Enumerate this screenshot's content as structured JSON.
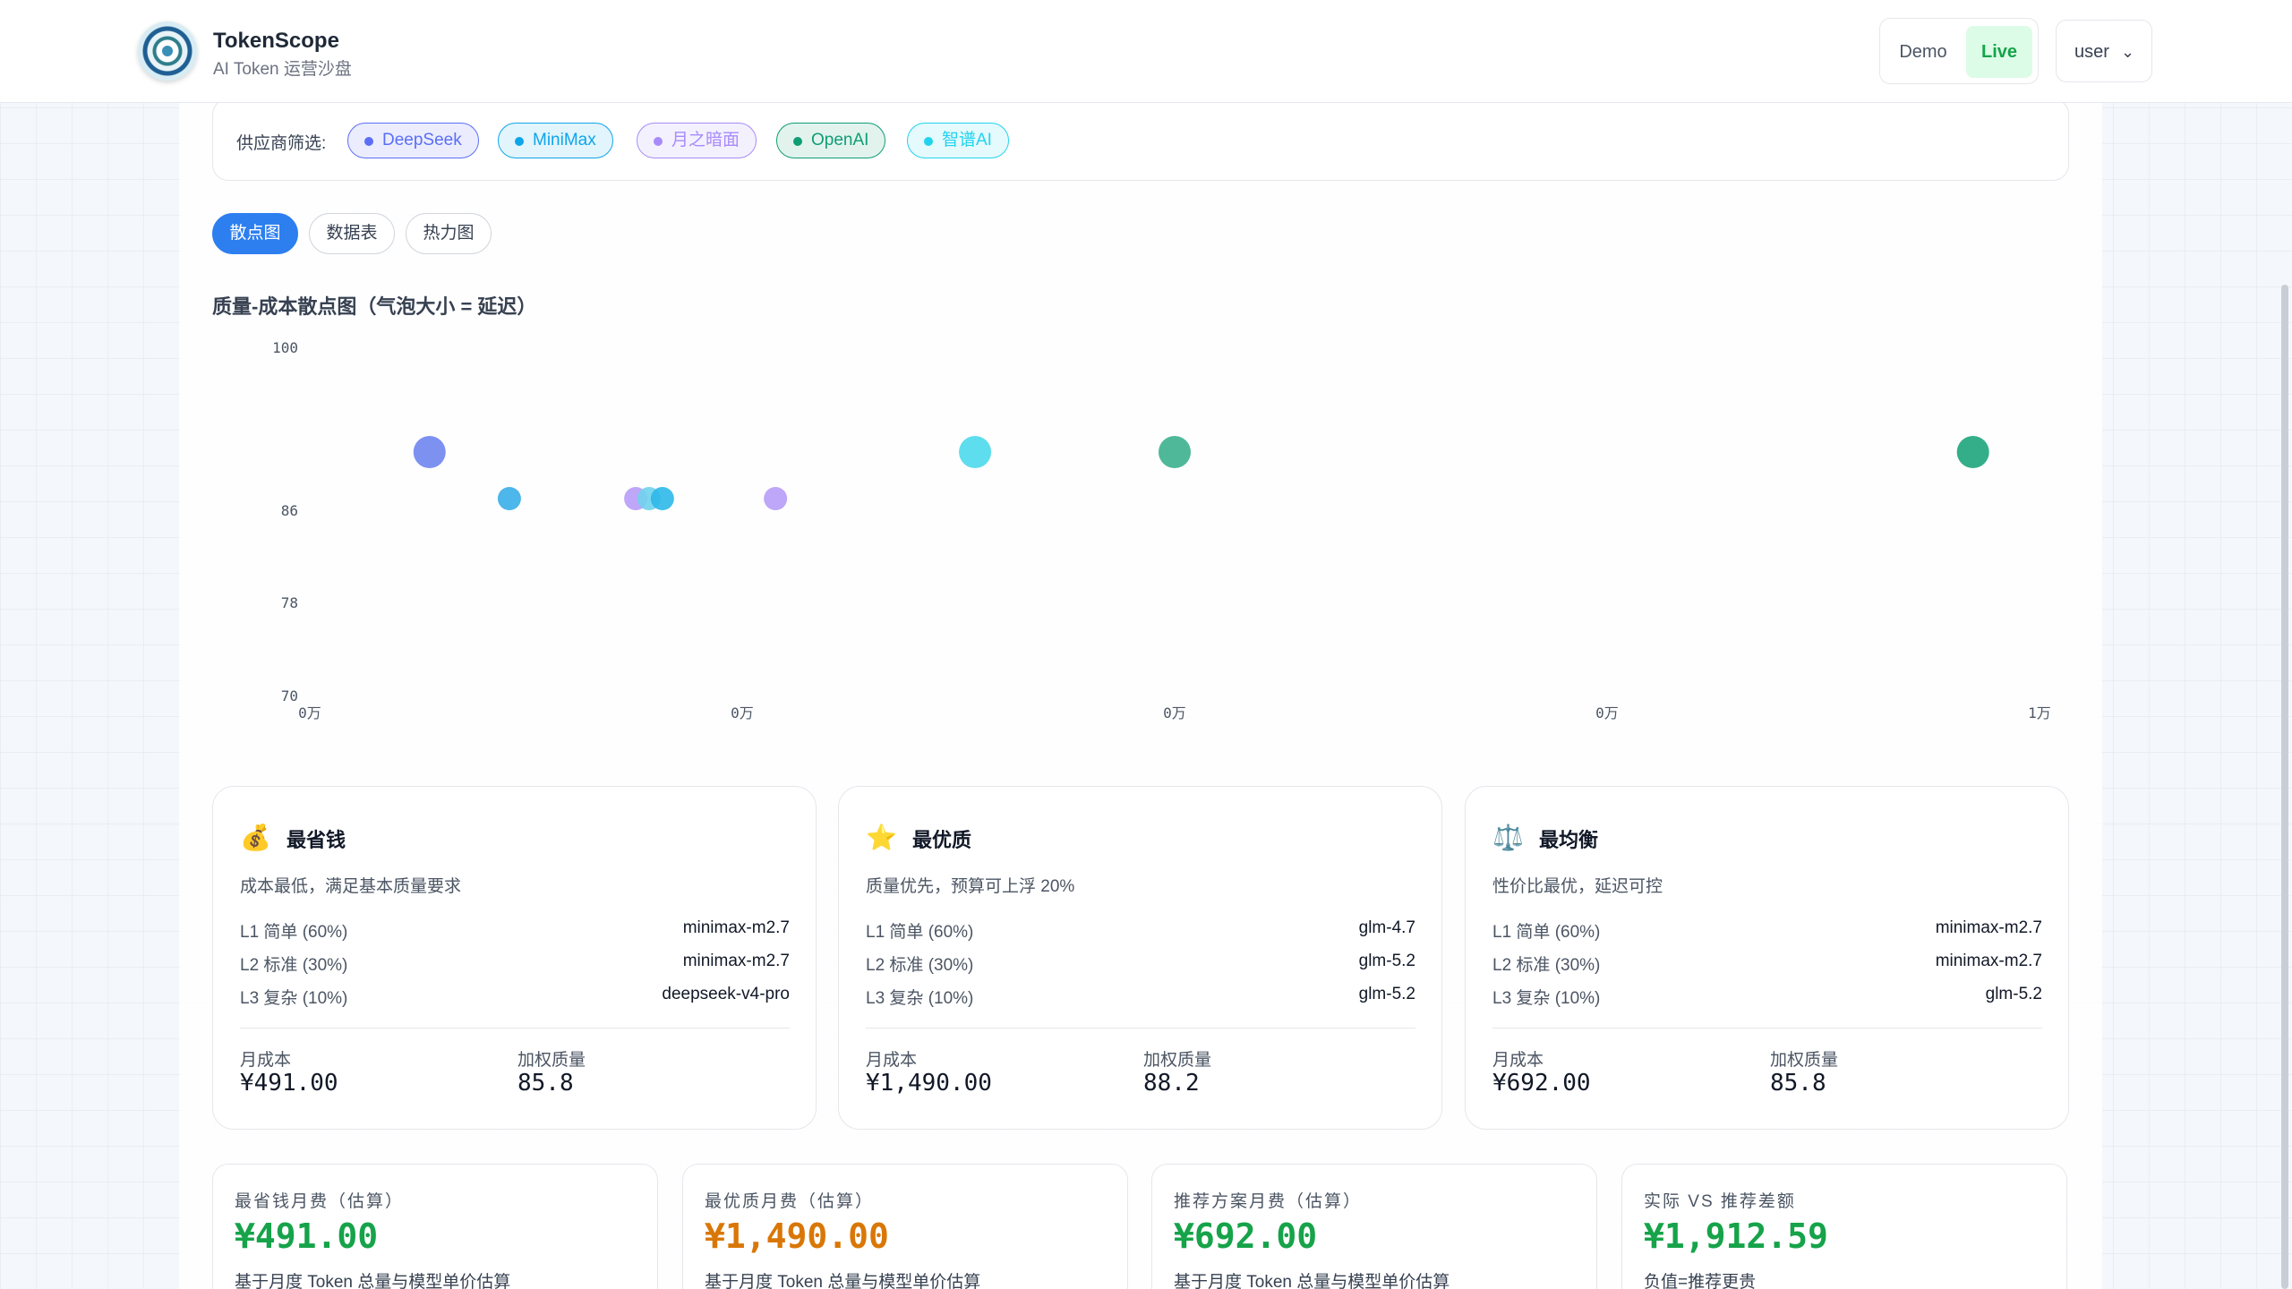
{
  "header": {
    "app_title": "TokenScope",
    "app_subtitle": "AI Token 运营沙盘",
    "mode_demo": "Demo",
    "mode_live": "Live",
    "user_label": "user"
  },
  "filter": {
    "label": "供应商筛选:",
    "chips": [
      {
        "name": "DeepSeek",
        "color": "#5b6ef5"
      },
      {
        "name": "MiniMax",
        "color": "#0ea5e9"
      },
      {
        "name": "月之暗面",
        "color": "#a78bfa"
      },
      {
        "name": "OpenAI",
        "color": "#0f9d74"
      },
      {
        "name": "智谱AI",
        "color": "#22d3ee"
      }
    ]
  },
  "view_tabs": [
    "散点图",
    "数据表",
    "热力图"
  ],
  "chart_title": "质量-成本散点图（气泡大小 = 延迟）",
  "chart_data": {
    "type": "scatter",
    "title": "质量-成本散点图（气泡大小 = 延迟）",
    "y_ticks": [
      "100",
      "86",
      "78",
      "70"
    ],
    "x_ticks": [
      "0万",
      "0万",
      "0万",
      "0万",
      "1万"
    ],
    "points": [
      {
        "x": 0.09,
        "y": 91,
        "color": "#6f85f0"
      },
      {
        "x": 0.5,
        "y": 91,
        "color": "#4dd9ec"
      },
      {
        "x": 0.65,
        "y": 91,
        "color": "#3cb08d"
      },
      {
        "x": 1.25,
        "y": 91,
        "color": "#1ea57c"
      },
      {
        "x": 0.15,
        "y": 87,
        "color": "#3aaee8"
      },
      {
        "x": 0.245,
        "y": 87,
        "color": "#b79cf7"
      },
      {
        "x": 0.255,
        "y": 87,
        "color": "#6fd3ec"
      },
      {
        "x": 0.265,
        "y": 87,
        "color": "#2db8e8"
      },
      {
        "x": 0.35,
        "y": 87,
        "color": "#b79cf7"
      }
    ]
  },
  "strategies": [
    {
      "icon": "💰",
      "title": "最省钱",
      "desc": "成本最低，满足基本质量要求",
      "rows": [
        {
          "level": "L1 简单 (60%)",
          "model": "minimax-m2.7"
        },
        {
          "level": "L2 标准 (30%)",
          "model": "minimax-m2.7"
        },
        {
          "level": "L3 复杂 (10%)",
          "model": "deepseek-v4-pro"
        }
      ],
      "cost_label": "月成本",
      "cost": "¥491.00",
      "quality_label": "加权质量",
      "quality": "85.8"
    },
    {
      "icon": "⭐",
      "title": "最优质",
      "desc": "质量优先，预算可上浮 20%",
      "rows": [
        {
          "level": "L1 简单 (60%)",
          "model": "glm-4.7"
        },
        {
          "level": "L2 标准 (30%)",
          "model": "glm-5.2"
        },
        {
          "level": "L3 复杂 (10%)",
          "model": "glm-5.2"
        }
      ],
      "cost_label": "月成本",
      "cost": "¥1,490.00",
      "quality_label": "加权质量",
      "quality": "88.2"
    },
    {
      "icon": "⚖️",
      "title": "最均衡",
      "desc": "性价比最优，延迟可控",
      "rows": [
        {
          "level": "L1 简单 (60%)",
          "model": "minimax-m2.7"
        },
        {
          "level": "L2 标准 (30%)",
          "model": "minimax-m2.7"
        },
        {
          "level": "L3 复杂 (10%)",
          "model": "glm-5.2"
        }
      ],
      "cost_label": "月成本",
      "cost": "¥692.00",
      "quality_label": "加权质量",
      "quality": "85.8"
    }
  ],
  "stats": [
    {
      "label": "最省钱月费（估算）",
      "value": "¥491.00",
      "note": "基于月度 Token 总量与模型单价估算",
      "color": "#16a34a"
    },
    {
      "label": "最优质月费（估算）",
      "value": "¥1,490.00",
      "note": "基于月度 Token 总量与模型单价估算",
      "color": "#d97706"
    },
    {
      "label": "推荐方案月费（估算）",
      "value": "¥692.00",
      "note": "基于月度 Token 总量与模型单价估算",
      "color": "#16a34a"
    },
    {
      "label": "实际 VS 推荐差额",
      "value": "¥1,912.59",
      "note": "负值=推荐更贵",
      "color": "#16a34a"
    }
  ]
}
